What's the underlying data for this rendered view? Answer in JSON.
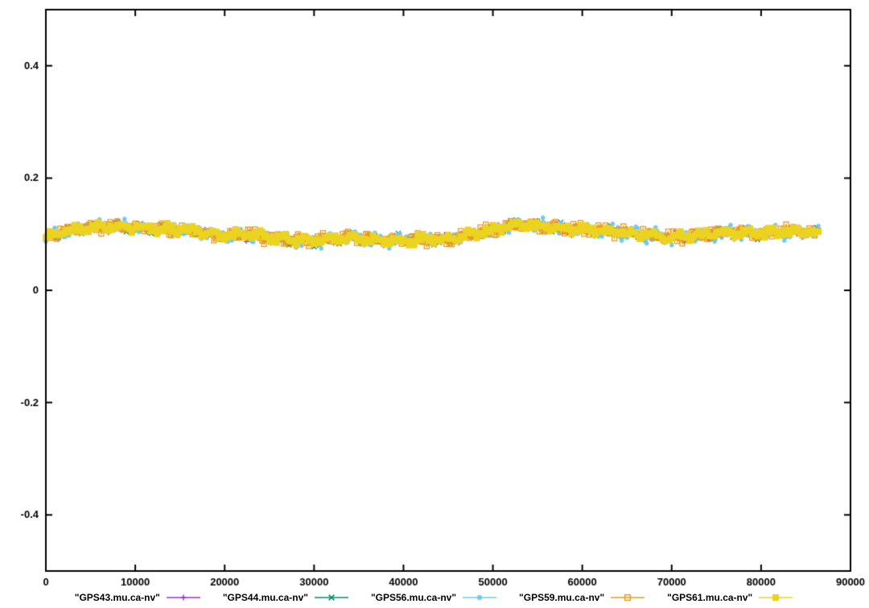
{
  "figure": {
    "background": "#ffffff",
    "border_color": "#000000",
    "tick_label_color": "#000000"
  },
  "chart_data": {
    "type": "line",
    "title": "",
    "xlabel": "",
    "ylabel": "",
    "xlim": [
      0,
      90000
    ],
    "ylim": [
      -0.5,
      0.5
    ],
    "x_ticks": [
      0,
      10000,
      20000,
      30000,
      40000,
      50000,
      60000,
      70000,
      80000,
      90000
    ],
    "x_tick_labels": [
      "0",
      "10000",
      "20000",
      "30000",
      "40000",
      "50000",
      "60000",
      "70000",
      "80000",
      "90000"
    ],
    "y_ticks": [
      -0.4,
      -0.2,
      0,
      0.2,
      0.4
    ],
    "y_tick_labels": [
      "-0.4",
      "-0.2",
      "0",
      "0.2",
      "0.4"
    ],
    "grid": false,
    "legend_position": "bottom-center",
    "x_end": 86400,
    "sample_step": 200,
    "noise": {
      "random_amp": 0.005,
      "wave1_amp": 0.0045,
      "wave1_period": 2600,
      "wave2_amp": 0.003,
      "wave2_period": 700,
      "spike_prob": 0.003,
      "spike_amp": 0.02
    },
    "mean_shape": {
      "x": [
        0,
        2000,
        4000,
        6000,
        8000,
        10000,
        12000,
        14000,
        16000,
        18000,
        20000,
        22000,
        24000,
        26000,
        28000,
        30000,
        32000,
        34000,
        36000,
        38000,
        40000,
        42000,
        44000,
        46000,
        48000,
        50000,
        52000,
        54000,
        56000,
        58000,
        60000,
        62000,
        64000,
        66000,
        68000,
        70000,
        72000,
        74000,
        76000,
        78000,
        80000,
        82000,
        84000,
        86400
      ],
      "y": [
        0.095,
        0.105,
        0.11,
        0.113,
        0.113,
        0.112,
        0.11,
        0.109,
        0.107,
        0.102,
        0.097,
        0.1,
        0.097,
        0.092,
        0.09,
        0.088,
        0.092,
        0.094,
        0.091,
        0.09,
        0.089,
        0.091,
        0.09,
        0.094,
        0.1,
        0.108,
        0.115,
        0.118,
        0.113,
        0.11,
        0.108,
        0.106,
        0.104,
        0.101,
        0.098,
        0.094,
        0.097,
        0.101,
        0.104,
        0.102,
        0.101,
        0.104,
        0.105,
        0.101
      ]
    },
    "series": [
      {
        "name": "\"GPS43.mu.ca-nv\"",
        "color": "#9932cc",
        "marker": "plus",
        "seed": 101,
        "amp_scale": 1.0,
        "spikes": true
      },
      {
        "name": "\"GPS44.mu.ca-nv\"",
        "color": "#008c64",
        "marker": "cross",
        "seed": 202,
        "amp_scale": 1.0,
        "spikes": true
      },
      {
        "name": "\"GPS56.mu.ca-nv\"",
        "color": "#6ec6f0",
        "marker": "asterisk",
        "seed": 303,
        "amp_scale": 1.3,
        "spikes": true
      },
      {
        "name": "\"GPS59.mu.ca-nv\"",
        "color": "#e69a1e",
        "marker": "square-open",
        "seed": 404,
        "amp_scale": 1.1,
        "spikes": false
      },
      {
        "name": "\"GPS61.mu.ca-nv\"",
        "color": "#ecd320",
        "marker": "square-filled",
        "seed": 505,
        "amp_scale": 0.9,
        "spikes": false
      }
    ]
  }
}
